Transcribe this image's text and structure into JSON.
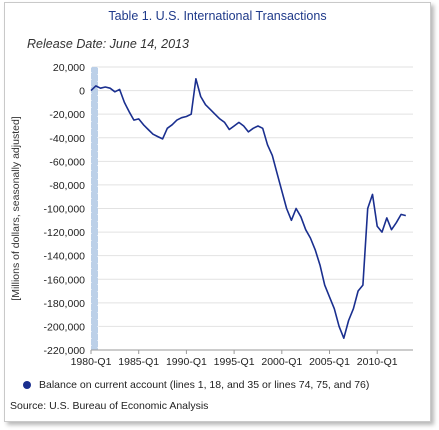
{
  "title": "Table 1. U.S. International Transactions",
  "subtitle": "Release Date: June 14, 2013",
  "source": "Source: U.S. Bureau of Economic Analysis",
  "colors": {
    "series": "#1a2f8f",
    "title": "#1f3a8a",
    "grid": "#e2e2e2",
    "highlight": "#bcd0e8"
  },
  "chart_data": {
    "type": "line",
    "title": "Table 1. U.S. International Transactions",
    "xlabel": "",
    "ylabel": "[Millions of dollars, seasonally adjusted]",
    "ylim": [
      -220000,
      20000
    ],
    "yticks": [
      20000,
      0,
      -20000,
      -40000,
      -60000,
      -80000,
      -100000,
      -120000,
      -140000,
      -160000,
      -180000,
      -200000,
      -220000
    ],
    "ytick_labels": [
      "20,000",
      "0",
      "-20,000",
      "-40,000",
      "-60,000",
      "-80,000",
      "-100,000",
      "-120,000",
      "-140,000",
      "-160,000",
      "-180,000",
      "-200,000",
      "-220,000"
    ],
    "xtick_labels": [
      "1980-Q1",
      "1985-Q1",
      "1990-Q1",
      "1995-Q1",
      "2000-Q1",
      "2005-Q1",
      "2010-Q1"
    ],
    "grid": true,
    "legend_position": "bottom",
    "series": [
      {
        "name": "Balance on current account (lines 1, 18, and 35 or lines 74, 75, and 76)",
        "points": [
          [
            "1980-Q1",
            0
          ],
          [
            "1980-Q3",
            4000
          ],
          [
            "1981-Q1",
            2000
          ],
          [
            "1981-Q3",
            3000
          ],
          [
            "1982-Q1",
            2000
          ],
          [
            "1982-Q3",
            -1000
          ],
          [
            "1983-Q1",
            1000
          ],
          [
            "1983-Q3",
            -10000
          ],
          [
            "1984-Q1",
            -18000
          ],
          [
            "1984-Q3",
            -25000
          ],
          [
            "1985-Q1",
            -24000
          ],
          [
            "1985-Q3",
            -29000
          ],
          [
            "1986-Q1",
            -33000
          ],
          [
            "1986-Q3",
            -37000
          ],
          [
            "1987-Q1",
            -39000
          ],
          [
            "1987-Q3",
            -41000
          ],
          [
            "1988-Q1",
            -32000
          ],
          [
            "1988-Q3",
            -29000
          ],
          [
            "1989-Q1",
            -25000
          ],
          [
            "1989-Q3",
            -23000
          ],
          [
            "1990-Q1",
            -22000
          ],
          [
            "1990-Q3",
            -20000
          ],
          [
            "1991-Q1",
            10000
          ],
          [
            "1991-Q3",
            -5000
          ],
          [
            "1992-Q1",
            -12000
          ],
          [
            "1992-Q3",
            -16000
          ],
          [
            "1993-Q1",
            -20000
          ],
          [
            "1993-Q3",
            -24000
          ],
          [
            "1994-Q1",
            -27000
          ],
          [
            "1994-Q3",
            -33000
          ],
          [
            "1995-Q1",
            -30000
          ],
          [
            "1995-Q3",
            -27000
          ],
          [
            "1996-Q1",
            -30000
          ],
          [
            "1996-Q3",
            -35000
          ],
          [
            "1997-Q1",
            -32000
          ],
          [
            "1997-Q3",
            -30000
          ],
          [
            "1998-Q1",
            -32000
          ],
          [
            "1998-Q3",
            -46000
          ],
          [
            "1999-Q1",
            -55000
          ],
          [
            "1999-Q3",
            -70000
          ],
          [
            "2000-Q1",
            -85000
          ],
          [
            "2000-Q3",
            -100000
          ],
          [
            "2001-Q1",
            -110000
          ],
          [
            "2001-Q3",
            -100000
          ],
          [
            "2002-Q1",
            -107000
          ],
          [
            "2002-Q3",
            -118000
          ],
          [
            "2003-Q1",
            -125000
          ],
          [
            "2003-Q3",
            -135000
          ],
          [
            "2004-Q1",
            -148000
          ],
          [
            "2004-Q3",
            -165000
          ],
          [
            "2005-Q1",
            -175000
          ],
          [
            "2005-Q3",
            -185000
          ],
          [
            "2006-Q1",
            -200000
          ],
          [
            "2006-Q3",
            -210000
          ],
          [
            "2007-Q1",
            -195000
          ],
          [
            "2007-Q3",
            -185000
          ],
          [
            "2008-Q1",
            -170000
          ],
          [
            "2008-Q3",
            -165000
          ],
          [
            "2009-Q1",
            -100000
          ],
          [
            "2009-Q3",
            -88000
          ],
          [
            "2010-Q1",
            -115000
          ],
          [
            "2010-Q3",
            -120000
          ],
          [
            "2011-Q1",
            -108000
          ],
          [
            "2011-Q3",
            -118000
          ],
          [
            "2012-Q1",
            -112000
          ],
          [
            "2012-Q3",
            -105000
          ],
          [
            "2013-Q1",
            -106000
          ]
        ]
      }
    ]
  }
}
